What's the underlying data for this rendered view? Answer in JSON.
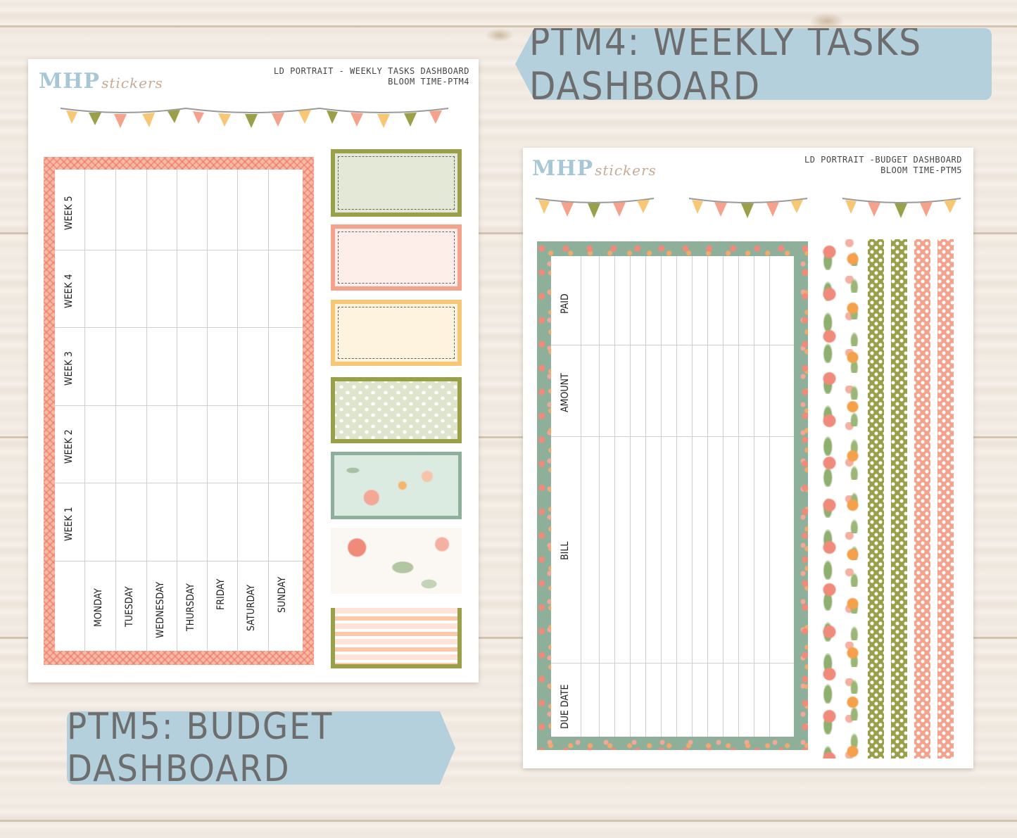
{
  "labels": {
    "ptm4": "PTM4: WEEKLY TASKS DASHBOARD",
    "ptm5": "PTM5: BUDGET DASHBOARD"
  },
  "sheet1": {
    "logo_main": "MHP",
    "logo_script": "stickers",
    "title_line1": "LD PORTRAIT - WEEKLY TASKS DASHBOARD",
    "title_line2": "BLOOM TIME-PTM4",
    "weeks": [
      "WEEK 5",
      "WEEK 4",
      "WEEK 3",
      "WEEK 2",
      "WEEK 1"
    ],
    "days": [
      "MONDAY",
      "TUESDAY",
      "WEDNESDAY",
      "THURSDAY",
      "FRIDAY",
      "SATURDAY",
      "SUNDAY"
    ]
  },
  "sheet2": {
    "logo_main": "MHP",
    "logo_script": "stickers",
    "title_line1": "LD PORTRAIT -BUDGET  DASHBOARD",
    "title_line2": "BLOOM TIME-PTM5",
    "columns": [
      "PAID",
      "AMOUNT",
      "BILL",
      "DUE DATE"
    ]
  },
  "colors": {
    "peach": "#f4a28c",
    "olive": "#9aa04a",
    "sage": "#e3e9d6",
    "blush": "#fdeee9",
    "butter": "#fdf3df",
    "yellow": "#f6c875",
    "tag_blue": "#b4d0dc"
  }
}
